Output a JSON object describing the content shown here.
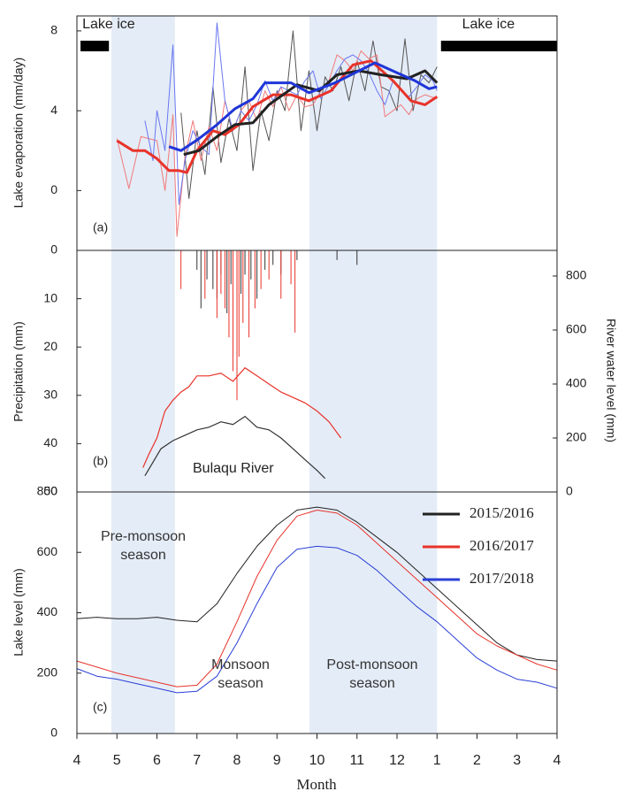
{
  "chart_data": [
    {
      "type": "line",
      "ylabel": "Lake evaporation (mm/day)",
      "annotation": "(a)",
      "xlim": [
        0,
        12
      ],
      "ylim": [
        -3,
        8.75
      ],
      "yticks": [
        0,
        4,
        8
      ],
      "span_color": "#e4ecf7",
      "spans": [
        {
          "x0": 0.86,
          "x1": 2.45
        },
        {
          "x0": 5.81,
          "x1": 9.0
        }
      ],
      "ice_bars": [
        {
          "x0": 0.09,
          "x1": 0.8,
          "label": "Lake ice"
        },
        {
          "x0": 9.1,
          "x1": 12,
          "label": "Lake ice"
        }
      ],
      "series": [
        {
          "color": "#555555",
          "linewidth": 1,
          "x": [
            2.6,
            2.8,
            3.0,
            3.2,
            3.4,
            3.6,
            3.8,
            4.0,
            4.2,
            4.4,
            4.6,
            4.8,
            5.0,
            5.2,
            5.4,
            5.6,
            5.8,
            6.0,
            6.2,
            6.4,
            6.6,
            6.8,
            7.0,
            7.2,
            7.4,
            7.6,
            7.8,
            8.0,
            8.2,
            8.4,
            8.6,
            8.8,
            9.0
          ],
          "values": [
            3.9,
            -0.4,
            3.0,
            0.8,
            5.2,
            1.4,
            3.6,
            2.0,
            6.2,
            1.0,
            4.0,
            2.5,
            5.0,
            4.0,
            8.0,
            3.0,
            6.0,
            3.0,
            5.7,
            5.0,
            6.2,
            4.5,
            6.5,
            5.0,
            7.5,
            5.2,
            5.0,
            4.0,
            7.6,
            4.0,
            5.8,
            5.4,
            6.2
          ]
        },
        {
          "color": "#f07a7a",
          "linewidth": 1,
          "x": [
            1.0,
            1.3,
            1.6,
            2.0,
            2.2,
            2.4,
            2.5,
            2.7,
            2.9,
            3.1,
            3.3,
            3.5,
            3.7,
            3.9,
            4.1,
            4.3,
            4.5,
            4.7,
            4.9,
            5.1,
            5.3,
            5.5,
            5.7,
            5.9,
            6.1,
            6.3,
            6.5,
            6.7,
            6.9,
            7.1,
            7.3,
            7.5,
            7.7,
            7.9,
            8.1,
            8.3,
            8.5,
            8.7,
            9.0
          ],
          "values": [
            2.6,
            0.1,
            2.7,
            2.5,
            0.0,
            3.8,
            -2.3,
            1.7,
            3.5,
            1.5,
            3.2,
            2.0,
            4.5,
            3.0,
            4.0,
            4.5,
            3.5,
            5.0,
            4.2,
            5.2,
            4.0,
            4.8,
            4.2,
            4.3,
            5.0,
            5.5,
            6.8,
            6.5,
            6.0,
            7.0,
            6.6,
            6.8,
            3.7,
            4.0,
            4.3,
            3.8,
            4.6,
            4.8,
            4.6
          ]
        },
        {
          "color": "#6a78f0",
          "linewidth": 1,
          "x": [
            1.7,
            1.9,
            2.0,
            2.2,
            2.4,
            2.55,
            2.7,
            2.9,
            3.1,
            3.3,
            3.5,
            3.7,
            3.9,
            4.1,
            4.3,
            4.5,
            4.7,
            4.9,
            5.1,
            5.3,
            5.5,
            5.7,
            5.9,
            6.1,
            6.3,
            6.5,
            6.7,
            6.9,
            7.1,
            7.3,
            7.5,
            7.7,
            7.9,
            8.1,
            8.3,
            8.5,
            8.7,
            8.9,
            9.0
          ],
          "values": [
            3.5,
            1.5,
            4.0,
            2.0,
            7.3,
            -0.7,
            1.5,
            3.0,
            2.2,
            1.8,
            8.4,
            4.5,
            3.0,
            4.0,
            3.5,
            4.3,
            5.5,
            4.5,
            5.2,
            5.0,
            4.8,
            5.5,
            6.0,
            4.6,
            5.3,
            6.0,
            6.6,
            6.8,
            6.5,
            5.9,
            5.0,
            4.3,
            5.5,
            5.0,
            4.7,
            5.2,
            5.8,
            5.5,
            5.0
          ]
        },
        {
          "color": "#e8332a",
          "linewidth": 3,
          "x": [
            1.0,
            1.4,
            1.7,
            2.0,
            2.3,
            2.55,
            2.75,
            3.0,
            3.4,
            3.7,
            4.05,
            4.4,
            4.9,
            5.35,
            5.8,
            6.35,
            6.9,
            7.35,
            7.9,
            8.35,
            8.7,
            9.0
          ],
          "values": [
            2.5,
            2.0,
            2.0,
            1.6,
            1.0,
            1.0,
            0.9,
            2.0,
            3.0,
            2.8,
            3.3,
            4.2,
            4.8,
            4.8,
            4.5,
            5.0,
            6.3,
            6.5,
            5.5,
            4.5,
            4.3,
            4.7
          ]
        },
        {
          "color": "#222222",
          "linewidth": 3,
          "x": [
            2.67,
            3.05,
            3.5,
            3.95,
            4.4,
            4.8,
            5.5,
            6.05,
            6.5,
            7.05,
            7.6,
            8.25,
            8.7,
            9.0
          ],
          "values": [
            1.8,
            2.0,
            2.7,
            3.3,
            3.4,
            4.3,
            5.3,
            5.0,
            5.8,
            6.0,
            5.8,
            5.6,
            6.0,
            5.4
          ]
        },
        {
          "color": "#1f35d8",
          "linewidth": 3,
          "x": [
            2.3,
            2.6,
            3.05,
            3.5,
            3.95,
            4.4,
            4.7,
            5.35,
            5.8,
            6.45,
            7.15,
            7.45,
            8.0,
            8.45,
            8.8,
            9.0
          ],
          "values": [
            2.2,
            2.0,
            2.6,
            3.3,
            4.1,
            4.6,
            5.4,
            5.4,
            4.9,
            5.4,
            6.1,
            6.4,
            5.9,
            5.5,
            5.1,
            5.2
          ]
        }
      ]
    },
    {
      "type": "combo",
      "ylabel": "Precipitation (mm)",
      "y2label": "River water level (mm)",
      "annotation": "(b)",
      "river_label": "Bulaqu River",
      "xlim": [
        0,
        12
      ],
      "ylim": [
        0,
        50
      ],
      "y_inverted": true,
      "yticks": [
        0,
        10,
        20,
        30,
        40,
        50
      ],
      "y2lim": [
        0,
        895
      ],
      "y2ticks": [
        0,
        200,
        400,
        600,
        800
      ],
      "series": [
        {
          "color": "#333333",
          "mark": "spike",
          "x": [
            3.0,
            3.1,
            3.25,
            3.4,
            3.5,
            3.6,
            3.75,
            3.85,
            4.0,
            4.1,
            4.2,
            4.35,
            4.5,
            4.7,
            4.9,
            5.1,
            5.5,
            6.5,
            7.0
          ],
          "values": [
            4,
            12,
            6,
            8,
            10,
            5,
            13,
            7,
            15,
            9,
            5,
            6,
            10,
            4,
            3,
            5,
            2,
            2,
            3
          ]
        },
        {
          "color": "#e8332a",
          "mark": "spike",
          "x": [
            2.6,
            3.2,
            3.5,
            3.6,
            3.7,
            3.8,
            3.9,
            4.0,
            4.05,
            4.15,
            4.3,
            4.45,
            4.6,
            4.8,
            5.1,
            5.35,
            5.45
          ],
          "values": [
            8,
            10,
            14,
            9,
            12,
            18,
            25,
            31,
            22,
            15,
            18,
            12,
            8,
            6,
            10,
            7,
            17
          ]
        },
        {
          "color": "#e8332a",
          "mark": "line",
          "axis": "y2",
          "x": [
            1.65,
            1.8,
            2.0,
            2.2,
            2.4,
            2.6,
            2.8,
            3.0,
            3.3,
            3.6,
            3.9,
            4.2,
            4.5,
            4.8,
            5.1,
            5.4,
            5.7,
            6.0,
            6.3,
            6.6
          ],
          "values": [
            90,
            140,
            200,
            300,
            340,
            370,
            390,
            430,
            430,
            440,
            410,
            460,
            430,
            400,
            370,
            350,
            330,
            300,
            260,
            200
          ]
        },
        {
          "color": "#333333",
          "mark": "line",
          "axis": "y2",
          "x": [
            1.7,
            1.9,
            2.1,
            2.4,
            2.7,
            3.0,
            3.3,
            3.6,
            3.9,
            4.2,
            4.5,
            4.8,
            5.1,
            5.4,
            5.7,
            6.0,
            6.2
          ],
          "values": [
            60,
            110,
            160,
            190,
            210,
            230,
            240,
            260,
            250,
            280,
            240,
            230,
            200,
            160,
            120,
            80,
            50
          ]
        }
      ]
    },
    {
      "type": "line",
      "ylabel": "Lake level (mm)",
      "xlabel": "Month",
      "annotation": "(c)",
      "legend": "upper right",
      "season_labels": [
        "Pre-monsoon season",
        "Monsoon season",
        "Post-monsoon season"
      ],
      "xlim": [
        0,
        12
      ],
      "ylim": [
        0,
        800
      ],
      "yticks": [
        0,
        200,
        400,
        600,
        800
      ],
      "xticks": [
        {
          "value": 0,
          "label": "4"
        },
        {
          "value": 1,
          "label": "5"
        },
        {
          "value": 2,
          "label": "6"
        },
        {
          "value": 3,
          "label": "7"
        },
        {
          "value": 4,
          "label": "8"
        },
        {
          "value": 5,
          "label": "9"
        },
        {
          "value": 6,
          "label": "10"
        },
        {
          "value": 7,
          "label": "11"
        },
        {
          "value": 8,
          "label": "12"
        },
        {
          "value": 9,
          "label": "1"
        },
        {
          "value": 10,
          "label": "2"
        },
        {
          "value": 11,
          "label": "3"
        },
        {
          "value": 12,
          "label": "4"
        }
      ],
      "series": [
        {
          "name": "2015/2016",
          "color": "#222222",
          "x": [
            0,
            0.5,
            1,
            1.5,
            2,
            2.5,
            3,
            3.5,
            4,
            4.5,
            5,
            5.5,
            6,
            6.5,
            7,
            7.5,
            8,
            8.5,
            9,
            9.5,
            10,
            10.5,
            11,
            11.5,
            12
          ],
          "values": [
            380,
            385,
            380,
            380,
            385,
            375,
            370,
            430,
            530,
            620,
            690,
            740,
            750,
            740,
            700,
            650,
            600,
            540,
            480,
            420,
            360,
            300,
            260,
            245,
            240
          ]
        },
        {
          "name": "2016/2017",
          "color": "#e8332a",
          "x": [
            0,
            0.5,
            1,
            1.5,
            2,
            2.5,
            3,
            3.5,
            4,
            4.5,
            5,
            5.5,
            6,
            6.5,
            7,
            7.5,
            8,
            8.5,
            9,
            9.5,
            10,
            10.5,
            11,
            11.5,
            12
          ],
          "values": [
            240,
            220,
            200,
            185,
            170,
            155,
            160,
            230,
            370,
            520,
            640,
            720,
            740,
            730,
            690,
            630,
            570,
            510,
            450,
            390,
            330,
            290,
            260,
            230,
            210
          ]
        },
        {
          "name": "2017/2018",
          "color": "#2a3fd6",
          "x": [
            0,
            0.5,
            1,
            1.5,
            2,
            2.5,
            3,
            3.5,
            4,
            4.5,
            5,
            5.5,
            6,
            6.5,
            7,
            7.5,
            8,
            8.5,
            9,
            9.5,
            10,
            10.5,
            11,
            11.5,
            12
          ],
          "values": [
            215,
            190,
            180,
            165,
            150,
            135,
            140,
            190,
            300,
            430,
            550,
            610,
            620,
            615,
            590,
            540,
            480,
            420,
            370,
            310,
            250,
            210,
            180,
            170,
            150
          ]
        }
      ]
    }
  ]
}
